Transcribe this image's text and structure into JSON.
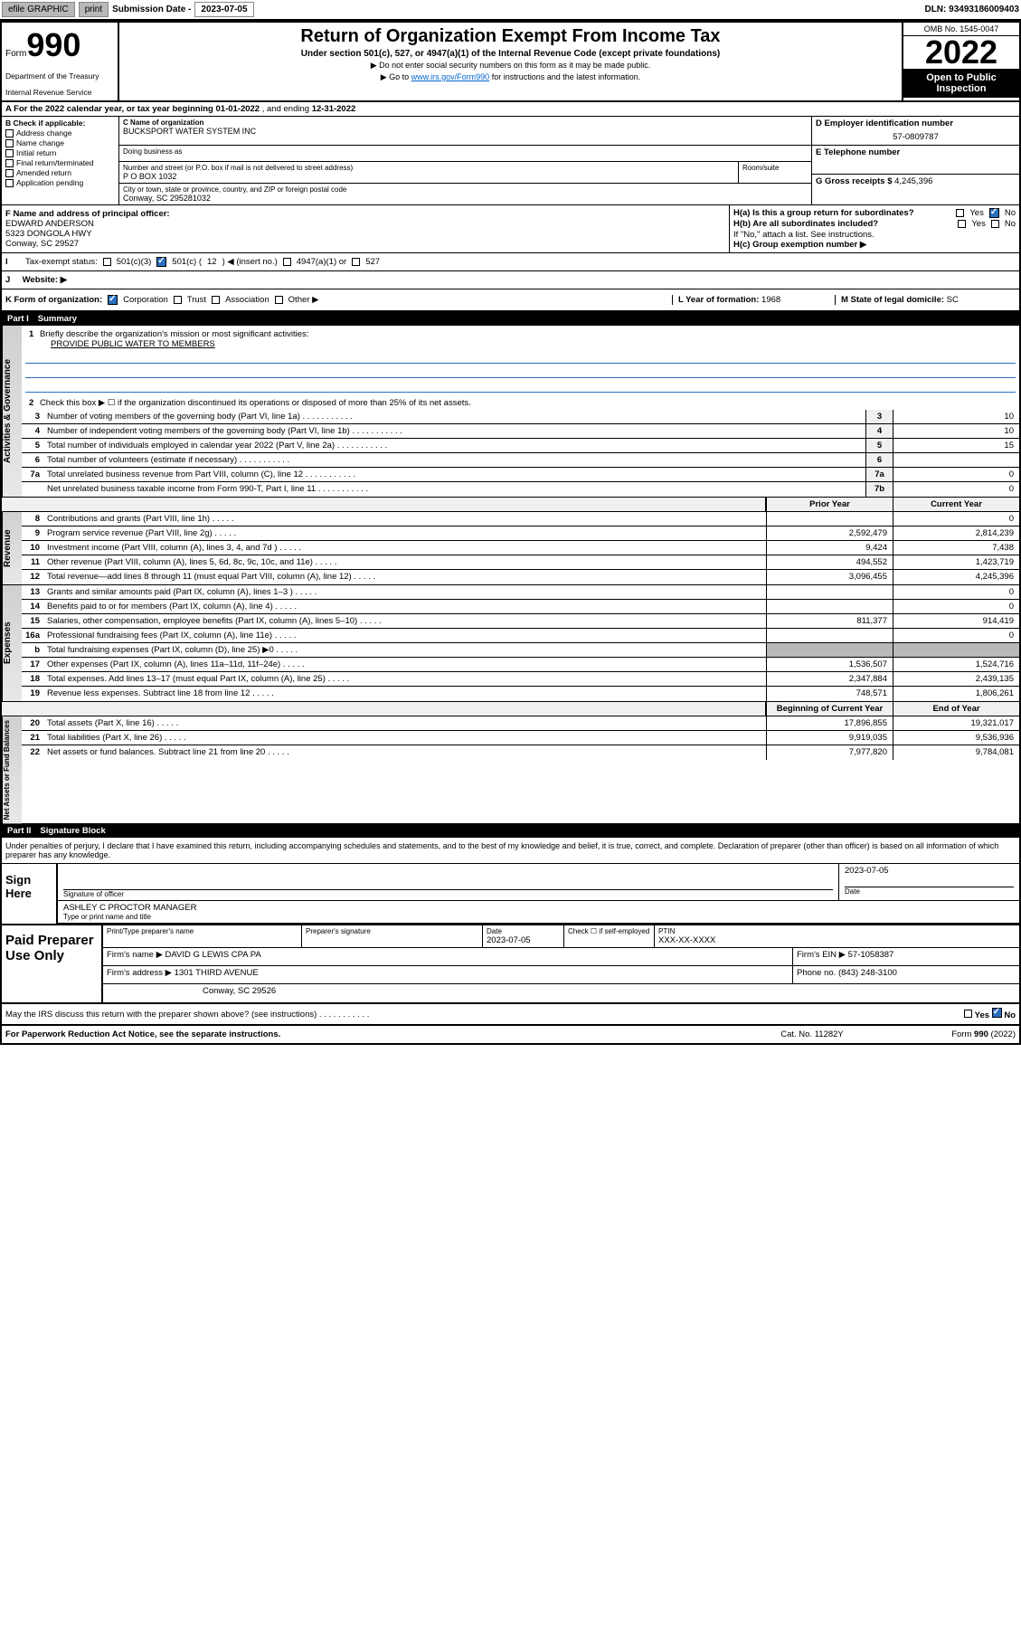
{
  "topbar": {
    "efile": "efile GRAPHIC",
    "print": "print",
    "sub_label": "Submission Date - ",
    "sub_date": "2023-07-05",
    "dln": "DLN: 93493186009403"
  },
  "header": {
    "form": "Form",
    "num": "990",
    "dept": "Department of the Treasury",
    "irs": "Internal Revenue Service",
    "title": "Return of Organization Exempt From Income Tax",
    "subtitle": "Under section 501(c), 527, or 4947(a)(1) of the Internal Revenue Code (except private foundations)",
    "note1": "▶ Do not enter social security numbers on this form as it may be made public.",
    "note2_pre": "▶ Go to ",
    "note2_link": "www.irs.gov/Form990",
    "note2_post": " for instructions and the latest information.",
    "omb": "OMB No. 1545-0047",
    "year": "2022",
    "open": "Open to Public Inspection"
  },
  "row_a": {
    "label": "A For the 2022 calendar year, or tax year beginning ",
    "begin": "01-01-2022",
    "mid": " , and ending ",
    "end": "12-31-2022"
  },
  "col_b": {
    "label": "B Check if applicable:",
    "items": [
      "Address change",
      "Name change",
      "Initial return",
      "Final return/terminated",
      "Amended return",
      "Application pending"
    ]
  },
  "col_c": {
    "name_label": "C Name of organization",
    "name": "BUCKSPORT WATER SYSTEM INC",
    "dba_label": "Doing business as",
    "addr_label": "Number and street (or P.O. box if mail is not delivered to street address)",
    "addr": "P O BOX 1032",
    "room_label": "Room/suite",
    "city_label": "City or town, state or province, country, and ZIP or foreign postal code",
    "city": "Conway, SC  295281032"
  },
  "col_d": {
    "label": "D Employer identification number",
    "val": "57-0809787"
  },
  "col_e": {
    "label": "E Telephone number"
  },
  "col_g": {
    "label": "G Gross receipts $ ",
    "val": "4,245,396"
  },
  "col_f": {
    "label": "F Name and address of principal officer:",
    "name": "EDWARD ANDERSON",
    "addr1": "5323 DONGOLA HWY",
    "addr2": "Conway, SC  29527"
  },
  "col_h": {
    "a_label": "H(a)  Is this a group return for subordinates?",
    "b_label": "H(b)  Are all subordinates included?",
    "note": "If \"No,\" attach a list. See instructions.",
    "c_label": "H(c)  Group exemption number ▶",
    "yes": "Yes",
    "no": "No"
  },
  "row_i": {
    "label": "Tax-exempt status:",
    "opt1": "501(c)(3)",
    "opt2_pre": "501(c) ( ",
    "opt2_num": "12",
    "opt2_post": " ) ◀ (insert no.)",
    "opt3": "4947(a)(1) or",
    "opt4": "527"
  },
  "row_j": {
    "label": "J",
    "text": "Website: ▶"
  },
  "row_k": {
    "label": "K Form of organization:",
    "opts": [
      "Corporation",
      "Trust",
      "Association",
      "Other ▶"
    ],
    "l_label": "L Year of formation: ",
    "l_val": "1968",
    "m_label": "M State of legal domicile: ",
    "m_val": "SC"
  },
  "part1": {
    "num": "Part I",
    "title": "Summary"
  },
  "gov": {
    "tab": "Activities & Governance",
    "l1_label": "Briefly describe the organization's mission or most significant activities:",
    "l1_val": "PROVIDE PUBLIC WATER TO MEMBERS",
    "l2": "Check this box ▶ ☐  if the organization discontinued its operations or disposed of more than 25% of its net assets.",
    "rows": [
      {
        "n": "3",
        "label": "Number of voting members of the governing body (Part VI, line 1a)",
        "box": "3",
        "val": "10"
      },
      {
        "n": "4",
        "label": "Number of independent voting members of the governing body (Part VI, line 1b)",
        "box": "4",
        "val": "10"
      },
      {
        "n": "5",
        "label": "Total number of individuals employed in calendar year 2022 (Part V, line 2a)",
        "box": "5",
        "val": "15"
      },
      {
        "n": "6",
        "label": "Total number of volunteers (estimate if necessary)",
        "box": "6",
        "val": ""
      },
      {
        "n": "7a",
        "label": "Total unrelated business revenue from Part VIII, column (C), line 12",
        "box": "7a",
        "val": "0"
      },
      {
        "n": "",
        "label": "Net unrelated business taxable income from Form 990-T, Part I, line 11",
        "box": "7b",
        "val": "0"
      }
    ]
  },
  "hdr_cols": {
    "prior": "Prior Year",
    "current": "Current Year",
    "boy": "Beginning of Current Year",
    "eoy": "End of Year"
  },
  "rev": {
    "tab": "Revenue",
    "rows": [
      {
        "n": "8",
        "label": "Contributions and grants (Part VIII, line 1h)",
        "p": "",
        "c": "0"
      },
      {
        "n": "9",
        "label": "Program service revenue (Part VIII, line 2g)",
        "p": "2,592,479",
        "c": "2,814,239"
      },
      {
        "n": "10",
        "label": "Investment income (Part VIII, column (A), lines 3, 4, and 7d )",
        "p": "9,424",
        "c": "7,438"
      },
      {
        "n": "11",
        "label": "Other revenue (Part VIII, column (A), lines 5, 6d, 8c, 9c, 10c, and 11e)",
        "p": "494,552",
        "c": "1,423,719"
      },
      {
        "n": "12",
        "label": "Total revenue—add lines 8 through 11 (must equal Part VIII, column (A), line 12)",
        "p": "3,096,455",
        "c": "4,245,396"
      }
    ]
  },
  "exp": {
    "tab": "Expenses",
    "rows": [
      {
        "n": "13",
        "label": "Grants and similar amounts paid (Part IX, column (A), lines 1–3 )",
        "p": "",
        "c": "0"
      },
      {
        "n": "14",
        "label": "Benefits paid to or for members (Part IX, column (A), line 4)",
        "p": "",
        "c": "0"
      },
      {
        "n": "15",
        "label": "Salaries, other compensation, employee benefits (Part IX, column (A), lines 5–10)",
        "p": "811,377",
        "c": "914,419"
      },
      {
        "n": "16a",
        "label": "Professional fundraising fees (Part IX, column (A), line 11e)",
        "p": "",
        "c": "0"
      },
      {
        "n": "b",
        "label": "Total fundraising expenses (Part IX, column (D), line 25) ▶0",
        "p": "grey",
        "c": "grey"
      },
      {
        "n": "17",
        "label": "Other expenses (Part IX, column (A), lines 11a–11d, 11f–24e)",
        "p": "1,536,507",
        "c": "1,524,716"
      },
      {
        "n": "18",
        "label": "Total expenses. Add lines 13–17 (must equal Part IX, column (A), line 25)",
        "p": "2,347,884",
        "c": "2,439,135"
      },
      {
        "n": "19",
        "label": "Revenue less expenses. Subtract line 18 from line 12",
        "p": "748,571",
        "c": "1,806,261"
      }
    ]
  },
  "net": {
    "tab": "Net Assets or Fund Balances",
    "rows": [
      {
        "n": "20",
        "label": "Total assets (Part X, line 16)",
        "p": "17,896,855",
        "c": "19,321,017"
      },
      {
        "n": "21",
        "label": "Total liabilities (Part X, line 26)",
        "p": "9,919,035",
        "c": "9,536,936"
      },
      {
        "n": "22",
        "label": "Net assets or fund balances. Subtract line 21 from line 20",
        "p": "7,977,820",
        "c": "9,784,081"
      }
    ]
  },
  "part2": {
    "num": "Part II",
    "title": "Signature Block"
  },
  "penalty": "Under penalties of perjury, I declare that I have examined this return, including accompanying schedules and statements, and to the best of my knowledge and belief, it is true, correct, and complete. Declaration of preparer (other than officer) is based on all information of which preparer has any knowledge.",
  "sign": {
    "here": "Sign Here",
    "sig_label": "Signature of officer",
    "date_label": "Date",
    "date": "2023-07-05",
    "name": "ASHLEY C PROCTOR  MANAGER",
    "name_label": "Type or print name and title"
  },
  "prep": {
    "title": "Paid Preparer Use Only",
    "h1": "Print/Type preparer's name",
    "h2": "Preparer's signature",
    "h3": "Date",
    "date": "2023-07-05",
    "h4_pre": "Check ☐ if self-employed",
    "h5": "PTIN",
    "ptin": "XXX-XX-XXXX",
    "firm_name_label": "Firm's name     ▶",
    "firm_name": "DAVID G LEWIS CPA PA",
    "firm_ein_label": "Firm's EIN ▶",
    "firm_ein": "57-1058387",
    "firm_addr_label": "Firm's address ▶",
    "firm_addr1": "1301 THIRD AVENUE",
    "firm_addr2": "Conway, SC  29526",
    "phone_label": "Phone no. ",
    "phone": "(843) 248-3100"
  },
  "footer": {
    "q": "May the IRS discuss this return with the preparer shown above? (see instructions)",
    "yes": "Yes",
    "no": "No",
    "paperwork": "For Paperwork Reduction Act Notice, see the separate instructions.",
    "cat": "Cat. No. 11282Y",
    "form": "Form 990 (2022)"
  }
}
